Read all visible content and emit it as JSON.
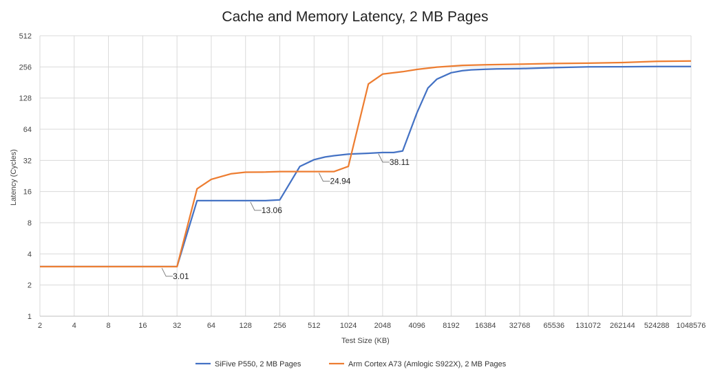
{
  "chart_data": {
    "type": "line",
    "title": "Cache and Memory Latency, 2 MB Pages",
    "xlabel": "Test Size (KB)",
    "ylabel": "Latency (Cycles)",
    "x_scale": "log2",
    "y_scale": "log2",
    "x_ticks": [
      "2",
      "4",
      "8",
      "16",
      "32",
      "64",
      "128",
      "256",
      "512",
      "1024",
      "2048",
      "4096",
      "8192",
      "16384",
      "32768",
      "65536",
      "131072",
      "262144",
      "524288",
      "1048576"
    ],
    "y_ticks": [
      "1",
      "2",
      "4",
      "8",
      "16",
      "32",
      "64",
      "128",
      "256",
      "512"
    ],
    "ylim": [
      1,
      512
    ],
    "xlim": [
      2,
      1048576
    ],
    "grid": true,
    "legend_position": "bottom",
    "series": [
      {
        "name": "SiFive P550, 2 MB Pages",
        "color": "#4472c4",
        "points": [
          [
            2,
            3.01
          ],
          [
            4,
            3.01
          ],
          [
            8,
            3.01
          ],
          [
            16,
            3.01
          ],
          [
            24,
            3.01
          ],
          [
            32,
            3.01
          ],
          [
            48,
            13.06
          ],
          [
            64,
            13.06
          ],
          [
            96,
            13.06
          ],
          [
            128,
            13.06
          ],
          [
            192,
            13.06
          ],
          [
            256,
            13.3
          ],
          [
            384,
            28
          ],
          [
            512,
            32.5
          ],
          [
            640,
            34.5
          ],
          [
            768,
            35.5
          ],
          [
            1024,
            36.8
          ],
          [
            1536,
            37.5
          ],
          [
            2048,
            38.11
          ],
          [
            2560,
            38.11
          ],
          [
            3072,
            39.5
          ],
          [
            4096,
            92
          ],
          [
            5120,
            160
          ],
          [
            6144,
            195
          ],
          [
            8192,
            225
          ],
          [
            10240,
            235
          ],
          [
            12288,
            240
          ],
          [
            16384,
            243
          ],
          [
            20480,
            245
          ],
          [
            32768,
            246
          ],
          [
            65536,
            252
          ],
          [
            131072,
            256
          ],
          [
            262144,
            257
          ],
          [
            524288,
            258
          ],
          [
            1048576,
            258
          ]
        ]
      },
      {
        "name": "Arm Cortex A73 (Amlogic S922X), 2 MB Pages",
        "color": "#ed7d31",
        "points": [
          [
            2,
            3.01
          ],
          [
            4,
            3.01
          ],
          [
            8,
            3.01
          ],
          [
            16,
            3.01
          ],
          [
            24,
            3.01
          ],
          [
            32,
            3.01
          ],
          [
            48,
            17
          ],
          [
            64,
            21
          ],
          [
            96,
            23.8
          ],
          [
            128,
            24.6
          ],
          [
            192,
            24.7
          ],
          [
            256,
            24.94
          ],
          [
            512,
            24.94
          ],
          [
            768,
            24.94
          ],
          [
            1024,
            28
          ],
          [
            1536,
            175
          ],
          [
            2048,
            218
          ],
          [
            3072,
            230
          ],
          [
            4096,
            242
          ],
          [
            6144,
            255
          ],
          [
            8192,
            260
          ],
          [
            10240,
            265
          ],
          [
            16384,
            268
          ],
          [
            32768,
            272
          ],
          [
            65536,
            276
          ],
          [
            131072,
            278
          ],
          [
            262144,
            282
          ],
          [
            524288,
            290
          ],
          [
            1048576,
            292
          ]
        ]
      }
    ],
    "annotations": [
      {
        "text": "3.01",
        "x": 32,
        "y": 3.01
      },
      {
        "text": "13.06",
        "x": 192,
        "y": 13.06
      },
      {
        "text": "24.94",
        "x": 768,
        "y": 24.94
      },
      {
        "text": "38.11",
        "x": 2560,
        "y": 38.11
      }
    ]
  }
}
